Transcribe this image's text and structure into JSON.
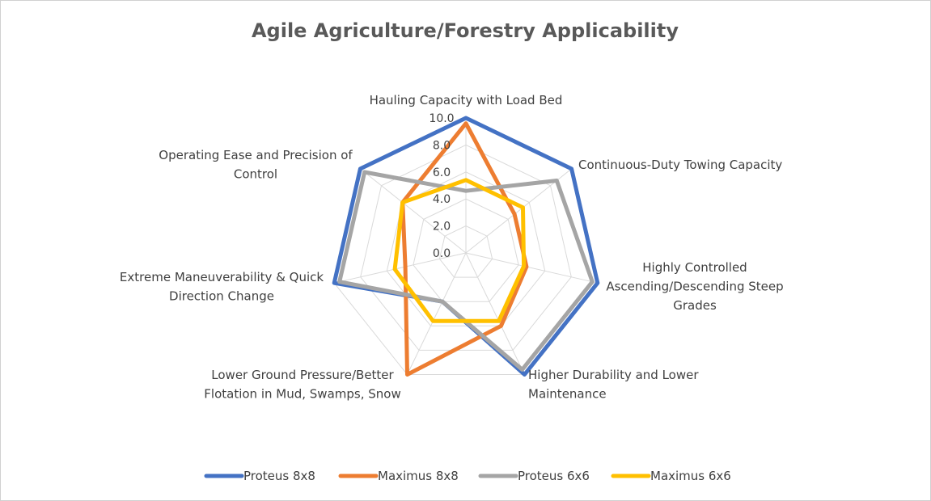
{
  "chart_data": {
    "type": "radar",
    "title": "Agile Agriculture/Forestry Applicability",
    "categories": [
      "Hauling Capacity with Load Bed",
      "Continuous-Duty Towing Capacity",
      "Highly Controlled Ascending/Descending Steep Grades",
      "Higher Durability and Lower Maintenance",
      "Lower Ground Pressure/Better Flotation in Mud, Swamps, Snow",
      "Extreme Maneuverability & Quick Direction Change",
      "Operating Ease and Precision of Control"
    ],
    "category_lines": [
      [
        "Hauling Capacity with Load Bed"
      ],
      [
        "Continuous-Duty Towing Capacity"
      ],
      [
        "Highly Controlled",
        "Ascending/Descending Steep",
        "Grades"
      ],
      [
        "Higher Durability and Lower",
        "Maintenance"
      ],
      [
        "Lower Ground Pressure/Better",
        "Flotation in Mud, Swamps, Snow"
      ],
      [
        "Extreme Maneuverability & Quick",
        "Direction Change"
      ],
      [
        "Operating Ease and Precision of",
        "Control"
      ]
    ],
    "rlim": [
      0,
      10
    ],
    "ticks": [
      "0.0",
      "2.0",
      "4.0",
      "6.0",
      "8.0",
      "10.0"
    ],
    "tick_values": [
      0,
      2,
      4,
      6,
      8,
      10
    ],
    "grid": true,
    "legend_position": "bottom",
    "series": [
      {
        "name": "Proteus 8x8",
        "color": "#4472C4",
        "values": [
          10,
          10,
          10,
          10,
          4,
          10,
          10
        ]
      },
      {
        "name": "Maximus 8x8",
        "color": "#ED7D31",
        "values": [
          9.6,
          4.6,
          4.6,
          6.0,
          10,
          4.6,
          6.0
        ]
      },
      {
        "name": "Proteus 6x6",
        "color": "#A5A5A5",
        "values": [
          4.6,
          8.6,
          9.6,
          9.6,
          4.0,
          9.6,
          9.6
        ]
      },
      {
        "name": "Maximus 6x6",
        "color": "#FFC000",
        "values": [
          5.4,
          5.4,
          4.4,
          5.6,
          5.6,
          5.4,
          6.0
        ]
      }
    ]
  }
}
